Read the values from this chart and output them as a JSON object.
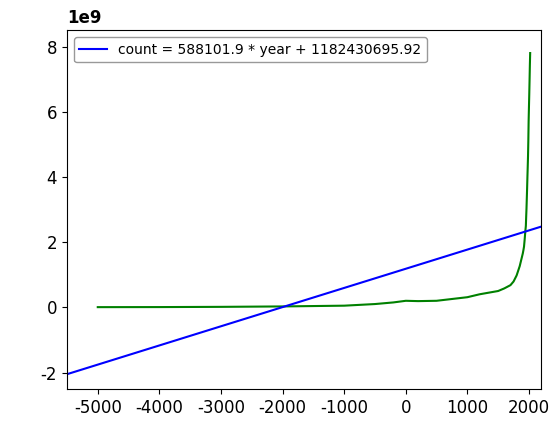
{
  "slope": 588101.9,
  "intercept": 1182430695.92,
  "legend_label": "count = 588101.9 * year + 1182430695.92",
  "line_color": "blue",
  "data_color": "green",
  "xlim": [
    -5500,
    2200
  ],
  "ylim": [
    -2500000000.0,
    8500000000.0
  ],
  "xticks": [
    -5000,
    -4000,
    -3000,
    -2000,
    -1000,
    0,
    1000,
    2000
  ],
  "yticks": [
    -2,
    0,
    2,
    4,
    6,
    8
  ],
  "world_pop_years": [
    -5000,
    -4000,
    -3000,
    -2000,
    -1000,
    -500,
    -200,
    1,
    200,
    500,
    1000,
    1200,
    1500,
    1600,
    1700,
    1750,
    1800,
    1850,
    1900,
    1910,
    1920,
    1930,
    1940,
    1950,
    1955,
    1960,
    1965,
    1970,
    1975,
    1980,
    1985,
    1990,
    1995,
    2000,
    2005,
    2010,
    2015,
    2020
  ],
  "world_pop_values": [
    5000000,
    7000000,
    14000000,
    27000000,
    50000000,
    100000000,
    150000000,
    200000000,
    190000000,
    200000000,
    310000000,
    400000000,
    500000000,
    580000000,
    680000000,
    791000000,
    978000000,
    1262000000,
    1650000000,
    1750000000,
    1860000000,
    2070000000,
    2300000000,
    2500000000,
    2773000000,
    3018000000,
    3322000000,
    3632000000,
    3979000000,
    4295000000,
    4633000000,
    5100000000,
    5719000000,
    6127000000,
    6520000000,
    6957000000,
    7426000000,
    7800000000
  ],
  "background_color": "white",
  "legend_loc": "upper left",
  "tick_fontsize": 12,
  "legend_fontsize": 10
}
